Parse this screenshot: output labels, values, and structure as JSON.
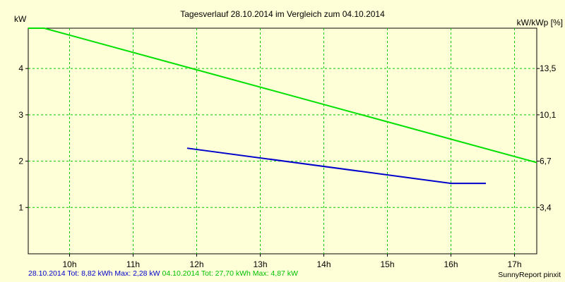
{
  "chart_data": {
    "type": "line",
    "title": "Tagesverlauf 28.10.2014 im Vergleich zum 04.10.2014",
    "ylabel_left": "kW",
    "ylabel_right": "kW/kWp [%]",
    "x_ticks": [
      "10h",
      "11h",
      "12h",
      "13h",
      "14h",
      "15h",
      "16h",
      "17h"
    ],
    "y_ticks_left": [
      "1",
      "2",
      "3",
      "4"
    ],
    "y_ticks_right": [
      "3,4",
      "6,7",
      "10,1",
      "13,5"
    ],
    "xlim": [
      9.35,
      17.35
    ],
    "ylim": [
      0,
      4.87
    ],
    "grid": true,
    "series": [
      {
        "name": "28.10.2014",
        "color": "#0000cc",
        "x": [
          11.85,
          16.0,
          16.55
        ],
        "y": [
          2.28,
          1.52,
          1.52
        ]
      },
      {
        "name": "04.10.2014",
        "color": "#00e000",
        "x": [
          9.35,
          9.6,
          17.35
        ],
        "y": [
          4.87,
          4.87,
          1.97
        ]
      }
    ]
  },
  "legend": {
    "series1_date": "28.10.2014",
    "series1_stats": "Tot: 8,82 kWh Max: 2,28 kW",
    "series2_date": "04.10.2014",
    "series2_stats": "Tot: 27,70 kWh Max: 4,87 kW",
    "series1_color": "#0000cc",
    "series2_color": "#00e000"
  },
  "credit": "SunnyReport pinxit"
}
